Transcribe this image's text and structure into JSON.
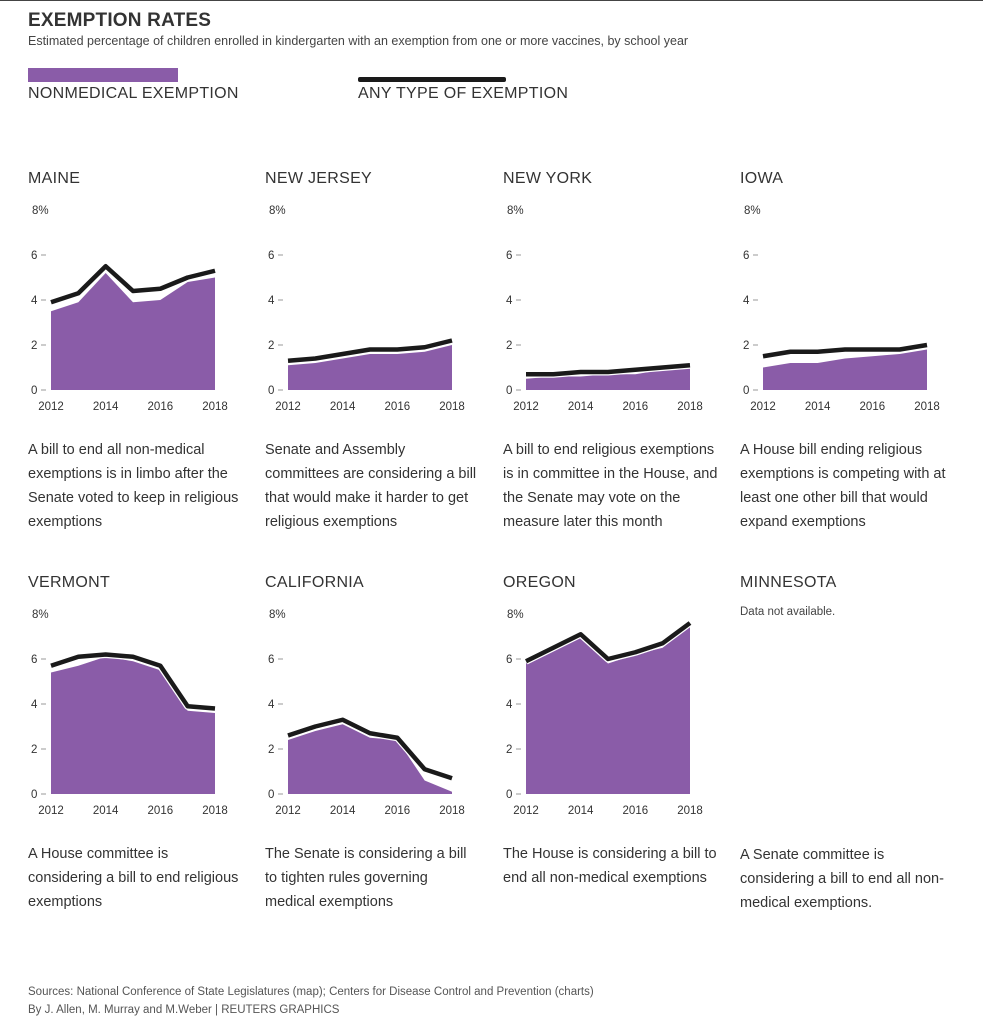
{
  "header": {
    "title": "EXEMPTION RATES",
    "subtitle": "Estimated percentage of children enrolled in kindergarten with an exemption from one or more vaccines, by school year"
  },
  "legend": {
    "area_label": "NONMEDICAL EXEMPTION",
    "line_label": "ANY TYPE OF EXEMPTION"
  },
  "colors": {
    "area": "#8a5ca8",
    "line": "#1a1a1a"
  },
  "panels": [
    {
      "state": "MAINE",
      "description": "A bill to end all non-medical exemptions is in limbo after the Senate voted to keep in religious exemptions"
    },
    {
      "state": "NEW JERSEY",
      "description": "Senate and Assembly committees are considering a bill that would make it harder to get religious exemptions"
    },
    {
      "state": "NEW YORK",
      "description": "A bill to end religious exemptions is in committee in the House, and the Senate may vote on the measure later this month"
    },
    {
      "state": "IOWA",
      "description": "A House bill ending religious exemptions is competing with at least one other bill that would expand exemptions"
    },
    {
      "state": "VERMONT",
      "description": "A House committee is considering a bill to end religious exemptions"
    },
    {
      "state": "CALIFORNIA",
      "description": "The Senate is considering a bill to tighten rules governing medical exemptions"
    },
    {
      "state": "OREGON",
      "description": "The House is considering a bill to end all non-medical exemptions"
    },
    {
      "state": "MINNESOTA",
      "note": "Data not available.",
      "description": "A Senate committee is considering a bill to end all non-medical exemptions."
    }
  ],
  "chart_data": [
    {
      "type": "area",
      "title": "MAINE",
      "x": [
        2012,
        2013,
        2014,
        2015,
        2016,
        2017,
        2018
      ],
      "x_ticks": [
        "2012",
        "2014",
        "2016",
        "2018"
      ],
      "y_ticks": [
        "8%",
        "6",
        "4",
        "2",
        "0"
      ],
      "ylim": [
        0,
        8
      ],
      "series": [
        {
          "name": "NONMEDICAL EXEMPTION",
          "values": [
            3.5,
            3.9,
            5.2,
            3.9,
            4.0,
            4.8,
            5.0
          ]
        },
        {
          "name": "ANY TYPE OF EXEMPTION",
          "values": [
            3.9,
            4.3,
            5.5,
            4.4,
            4.5,
            5.0,
            5.3
          ]
        }
      ]
    },
    {
      "type": "area",
      "title": "NEW JERSEY",
      "x": [
        2012,
        2013,
        2014,
        2015,
        2016,
        2017,
        2018
      ],
      "x_ticks": [
        "2012",
        "2014",
        "2016",
        "2018"
      ],
      "y_ticks": [
        "8%",
        "6",
        "4",
        "2",
        "0"
      ],
      "ylim": [
        0,
        8
      ],
      "series": [
        {
          "name": "NONMEDICAL EXEMPTION",
          "values": [
            1.1,
            1.2,
            1.4,
            1.6,
            1.6,
            1.7,
            2.0
          ]
        },
        {
          "name": "ANY TYPE OF EXEMPTION",
          "values": [
            1.3,
            1.4,
            1.6,
            1.8,
            1.8,
            1.9,
            2.2
          ]
        }
      ]
    },
    {
      "type": "area",
      "title": "NEW YORK",
      "x": [
        2012,
        2013,
        2014,
        2015,
        2016,
        2017,
        2018
      ],
      "x_ticks": [
        "2012",
        "2014",
        "2016",
        "2018"
      ],
      "y_ticks": [
        "8%",
        "6",
        "4",
        "2",
        "0"
      ],
      "ylim": [
        0,
        8
      ],
      "series": [
        {
          "name": "NONMEDICAL EXEMPTION",
          "values": [
            0.5,
            0.6,
            0.6,
            0.7,
            0.7,
            0.9,
            1.0
          ]
        },
        {
          "name": "ANY TYPE OF EXEMPTION",
          "values": [
            0.7,
            0.7,
            0.8,
            0.8,
            0.9,
            1.0,
            1.1
          ]
        }
      ]
    },
    {
      "type": "area",
      "title": "IOWA",
      "x": [
        2012,
        2013,
        2014,
        2015,
        2016,
        2017,
        2018
      ],
      "x_ticks": [
        "2012",
        "2014",
        "2016",
        "2018"
      ],
      "y_ticks": [
        "8%",
        "6",
        "4",
        "2",
        "0"
      ],
      "ylim": [
        0,
        8
      ],
      "series": [
        {
          "name": "NONMEDICAL EXEMPTION",
          "values": [
            1.0,
            1.2,
            1.2,
            1.4,
            1.5,
            1.6,
            1.8
          ]
        },
        {
          "name": "ANY TYPE OF EXEMPTION",
          "values": [
            1.5,
            1.7,
            1.7,
            1.8,
            1.8,
            1.8,
            2.0
          ]
        }
      ]
    },
    {
      "type": "area",
      "title": "VERMONT",
      "x": [
        2012,
        2013,
        2014,
        2015,
        2016,
        2017,
        2018
      ],
      "x_ticks": [
        "2012",
        "2014",
        "2016",
        "2018"
      ],
      "y_ticks": [
        "8%",
        "6",
        "4",
        "2",
        "0"
      ],
      "ylim": [
        0,
        8
      ],
      "series": [
        {
          "name": "NONMEDICAL EXEMPTION",
          "values": [
            5.4,
            5.7,
            6.1,
            5.9,
            5.5,
            3.7,
            3.6
          ]
        },
        {
          "name": "ANY TYPE OF EXEMPTION",
          "values": [
            5.7,
            6.1,
            6.2,
            6.1,
            5.7,
            3.9,
            3.8
          ]
        }
      ]
    },
    {
      "type": "area",
      "title": "CALIFORNIA",
      "x": [
        2012,
        2013,
        2014,
        2015,
        2016,
        2017,
        2018
      ],
      "x_ticks": [
        "2012",
        "2014",
        "2016",
        "2018"
      ],
      "y_ticks": [
        "8%",
        "6",
        "4",
        "2",
        "0"
      ],
      "ylim": [
        0,
        8
      ],
      "series": [
        {
          "name": "NONMEDICAL EXEMPTION",
          "values": [
            2.4,
            2.8,
            3.1,
            2.5,
            2.4,
            0.6,
            0.1
          ]
        },
        {
          "name": "ANY TYPE OF EXEMPTION",
          "values": [
            2.6,
            3.0,
            3.3,
            2.7,
            2.5,
            1.1,
            0.7
          ]
        }
      ]
    },
    {
      "type": "area",
      "title": "OREGON",
      "x": [
        2012,
        2013,
        2014,
        2015,
        2016,
        2017,
        2018
      ],
      "x_ticks": [
        "2012",
        "2014",
        "2016",
        "2018"
      ],
      "y_ticks": [
        "8%",
        "6",
        "4",
        "2",
        "0"
      ],
      "ylim": [
        0,
        8
      ],
      "series": [
        {
          "name": "NONMEDICAL EXEMPTION",
          "values": [
            5.8,
            6.4,
            7.0,
            5.8,
            6.2,
            6.5,
            7.5
          ]
        },
        {
          "name": "ANY TYPE OF EXEMPTION",
          "values": [
            5.9,
            6.5,
            7.1,
            6.0,
            6.3,
            6.7,
            7.6
          ]
        }
      ]
    }
  ],
  "footer": {
    "sources": "Sources: National Conference of State Legislatures (map); Centers for Disease Control and Prevention (charts)",
    "credits": "By J. Allen, M. Murray and M.Weber | REUTERS GRAPHICS"
  }
}
